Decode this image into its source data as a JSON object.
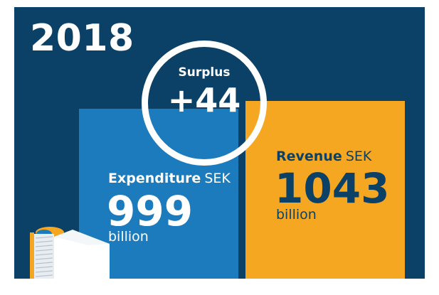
{
  "year": "2018",
  "chart_data": {
    "type": "bar",
    "categories": [
      "Expenditure",
      "Revenue"
    ],
    "values": [
      999,
      1043
    ],
    "unit_prefix": "SEK",
    "unit_suffix": "billion",
    "title": "2018",
    "surplus": {
      "label": "Surplus",
      "value": "+44"
    }
  },
  "labels": {
    "expenditure_name": "Expenditure",
    "expenditure_unit": "SEK",
    "expenditure_value": "999",
    "expenditure_suffix": "billion",
    "revenue_name": "Revenue",
    "revenue_unit": "SEK",
    "revenue_value": "1043",
    "revenue_suffix": "billion"
  },
  "colors": {
    "background": "#0c4167",
    "expenditure": "#1c7bbd",
    "revenue": "#f5a722",
    "revenue_text": "#0c4167",
    "white": "#ffffff"
  },
  "icons": {
    "decoration": "document-stack-icon"
  }
}
